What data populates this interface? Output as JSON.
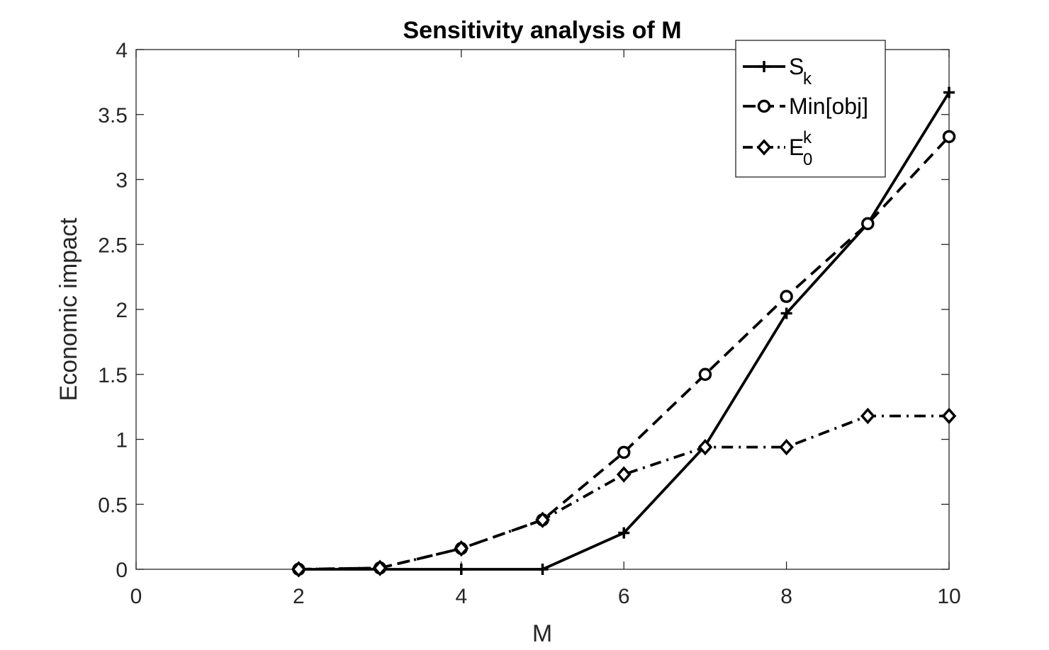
{
  "chart_data": {
    "type": "line",
    "title": "Sensitivity analysis of M",
    "xlabel": "M",
    "ylabel": "Economic impact",
    "xlim": [
      0,
      10
    ],
    "ylim": [
      0,
      4
    ],
    "xticks": [
      "0",
      "2",
      "4",
      "6",
      "8",
      "10"
    ],
    "yticks": [
      "0",
      "0.5",
      "1",
      "1.5",
      "2",
      "2.5",
      "3",
      "3.5",
      "4"
    ],
    "grid": false,
    "legend_position": "top-right",
    "x": [
      2,
      3,
      4,
      5,
      6,
      7,
      8,
      9,
      10
    ],
    "series": [
      {
        "name": "S",
        "name_sub": "k",
        "marker": "plus",
        "line_style": "solid",
        "values": [
          0,
          0,
          0,
          0,
          0.28,
          0.95,
          1.97,
          2.66,
          3.67
        ]
      },
      {
        "name": "Min[obj]",
        "marker": "circle",
        "line_style": "dashed",
        "values": [
          0,
          0.01,
          0.16,
          0.38,
          0.9,
          1.5,
          2.1,
          2.66,
          3.33
        ]
      },
      {
        "name": "E",
        "name_sub": "0",
        "name_sup": "k",
        "marker": "diamond",
        "line_style": "dash-dot",
        "values": [
          0,
          0.01,
          0.16,
          0.38,
          0.73,
          0.94,
          0.94,
          1.18,
          1.18
        ]
      }
    ],
    "colors": {
      "line": "#000000",
      "axis": "#262626"
    }
  }
}
